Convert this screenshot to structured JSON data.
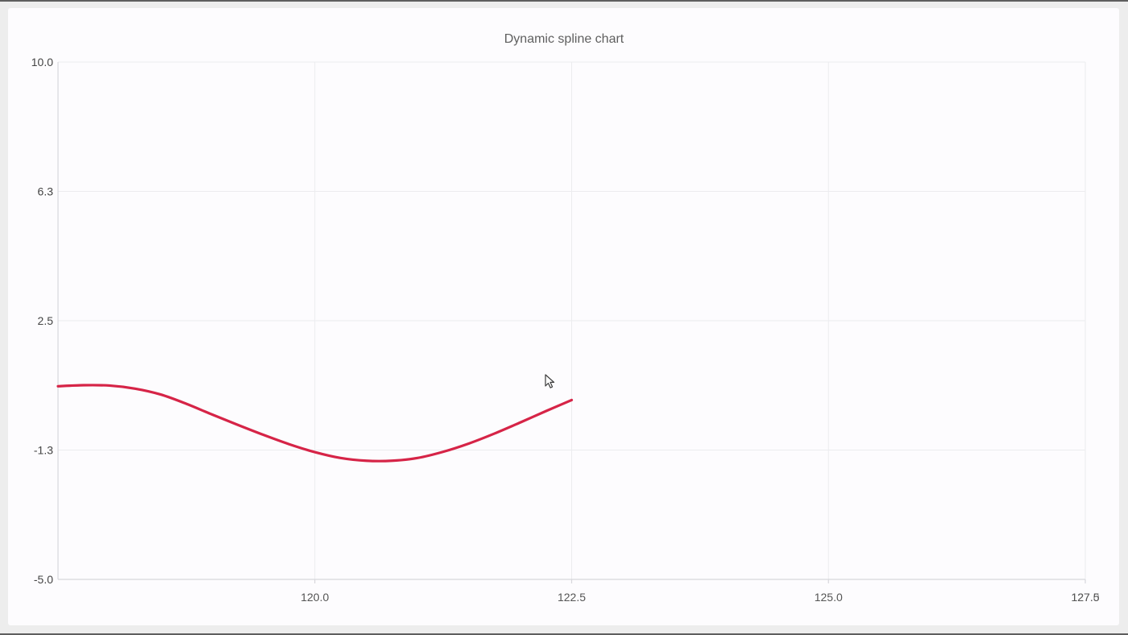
{
  "chart_data": {
    "type": "line",
    "title": "Dynamic spline chart",
    "xlabel": "",
    "ylabel": "",
    "xlim": [
      117.5,
      127.5
    ],
    "ylim": [
      -5.0,
      10.0
    ],
    "x_ticks": [
      "120.0",
      "122.5",
      "125.0",
      "127.5"
    ],
    "x_tick_values": [
      120.0,
      122.5,
      125.0,
      127.5
    ],
    "x_tick_overlap": [
      "127.0",
      127.0
    ],
    "y_ticks": [
      "10.0",
      "6.3",
      "2.5",
      "-1.3",
      "-5.0"
    ],
    "y_tick_values": [
      10.0,
      6.25,
      2.5,
      -1.25,
      -5.0
    ],
    "grid": true,
    "legend": "none",
    "series": [
      {
        "color": "#d62447",
        "x": [
          117.5,
          117.75,
          118.0,
          118.25,
          118.5,
          118.75,
          119.0,
          119.25,
          119.5,
          119.75,
          120.0,
          120.25,
          120.5,
          120.75,
          121.0,
          121.25,
          121.5,
          121.75,
          122.0,
          122.25,
          122.5
        ],
        "y": [
          0.6,
          0.63,
          0.62,
          0.53,
          0.36,
          0.09,
          -0.22,
          -0.52,
          -0.81,
          -1.08,
          -1.31,
          -1.48,
          -1.56,
          -1.56,
          -1.48,
          -1.3,
          -1.06,
          -0.77,
          -0.45,
          -0.12,
          0.2
        ]
      }
    ]
  }
}
